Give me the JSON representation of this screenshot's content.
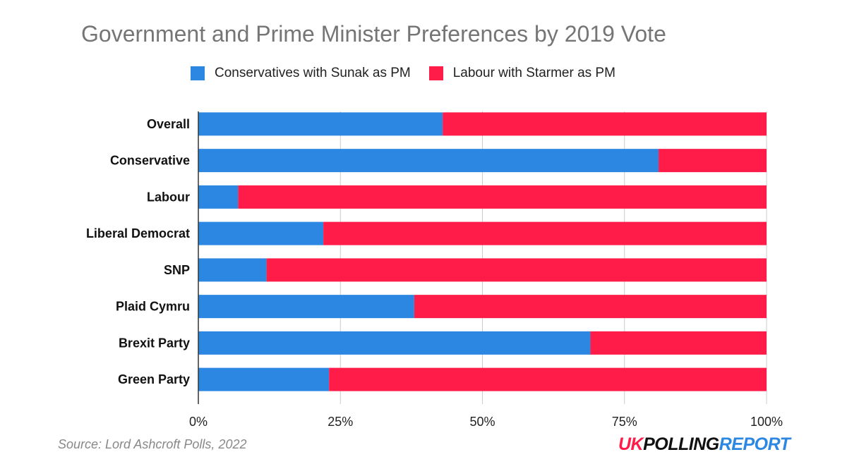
{
  "chart_data": {
    "type": "bar",
    "orientation": "horizontal",
    "stacked": true,
    "title": "Government and Prime Minister Preferences by 2019 Vote",
    "categories": [
      "Overall",
      "Conservative",
      "Labour",
      "Liberal Democrat",
      "SNP",
      "Plaid Cymru",
      "Brexit Party",
      "Green Party"
    ],
    "series": [
      {
        "name": "Conservatives with Sunak as PM",
        "color": "#2c87e2",
        "values": [
          43,
          81,
          7,
          22,
          12,
          38,
          69,
          23
        ]
      },
      {
        "name": "Labour with Starmer as PM",
        "color": "#ff1c48",
        "values": [
          57,
          19,
          93,
          78,
          88,
          62,
          31,
          77
        ]
      }
    ],
    "x_ticks": [
      "0%",
      "25%",
      "50%",
      "75%",
      "100%"
    ],
    "xlim": [
      0,
      100
    ],
    "grid": true,
    "legend_position": "top"
  },
  "source": "Source: Lord Ashcroft Polls, 2022",
  "logo": {
    "part1": "UK",
    "part2": "POLLING",
    "part3": "REPORT",
    "color1": "#ff1c48",
    "color2": "#111111",
    "color3": "#2c87e2"
  }
}
